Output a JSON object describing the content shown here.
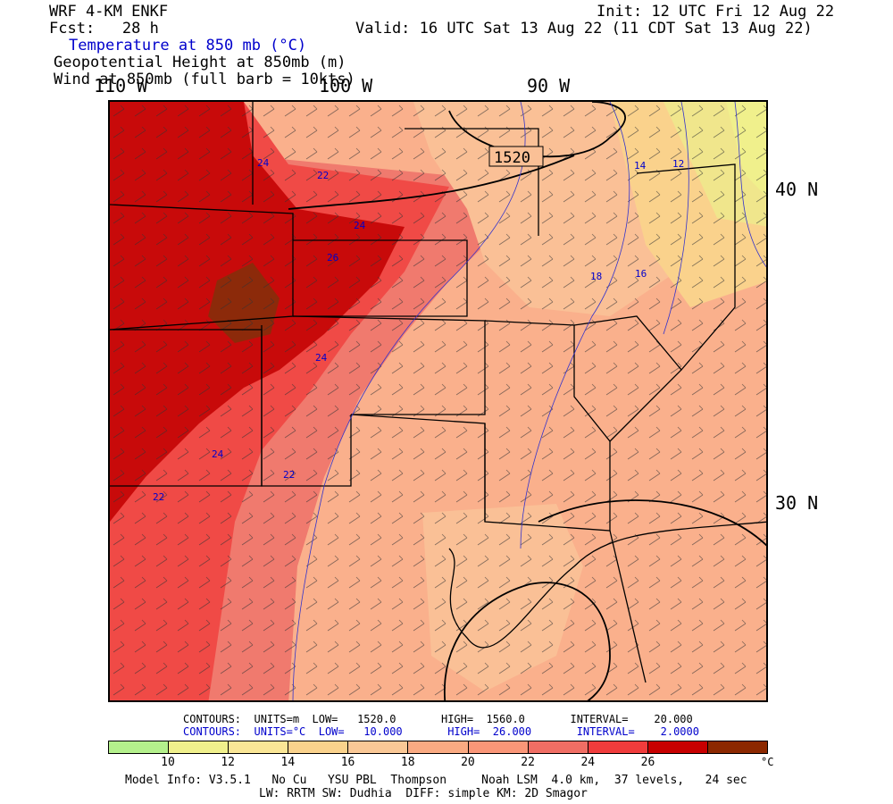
{
  "header": {
    "model": "WRF 4-KM ENKF",
    "fcst": "Fcst:   28 h",
    "init": "Init: 12 UTC Fri 12 Aug 22",
    "valid": "Valid: 16 UTC Sat 13 Aug 22 (11 CDT Sat 13 Aug 22)",
    "field1": "Temperature at 850 mb (°C)",
    "field2": "Geopotential Height at 850mb (m)",
    "field3": "Wind at 850mb (full barb = 10kts)"
  },
  "axes": {
    "lon_110": "110 W",
    "lon_100": "100 W",
    "lon_90": "90 W",
    "lat_40": "40 N",
    "lat_30": "30 N"
  },
  "contour_labels": {
    "height": "1520",
    "temps": [
      "24",
      "22",
      "24",
      "26",
      "24",
      "24",
      "22",
      "22",
      "18",
      "16",
      "14",
      "12"
    ]
  },
  "contours_info": {
    "height_line": "CONTOURS:  UNITS=m  LOW=   1520.0       HIGH=  1560.0       INTERVAL=    20.000",
    "temp_line": "CONTOURS:  UNITS=°C  LOW=   10.000       HIGH=  26.000       INTERVAL=    2.0000"
  },
  "colorbar": {
    "colors": [
      "#b4f08c",
      "#f0f08c",
      "#fae696",
      "#fad28c",
      "#fac896",
      "#faaa82",
      "#fa9678",
      "#f06e64",
      "#f03c3c",
      "#c80000",
      "#8c2800"
    ],
    "ticks": [
      "10",
      "12",
      "14",
      "16",
      "18",
      "20",
      "22",
      "24",
      "26"
    ],
    "unit": "°C"
  },
  "footer": {
    "line1": "Model Info: V3.5.1   No Cu   YSU PBL  Thompson     Noah LSM  4.0 km,  37 levels,   24 sec",
    "line2": "LW: RRTM SW: Dudhia  DIFF: simple KM: 2D Smagor"
  }
}
